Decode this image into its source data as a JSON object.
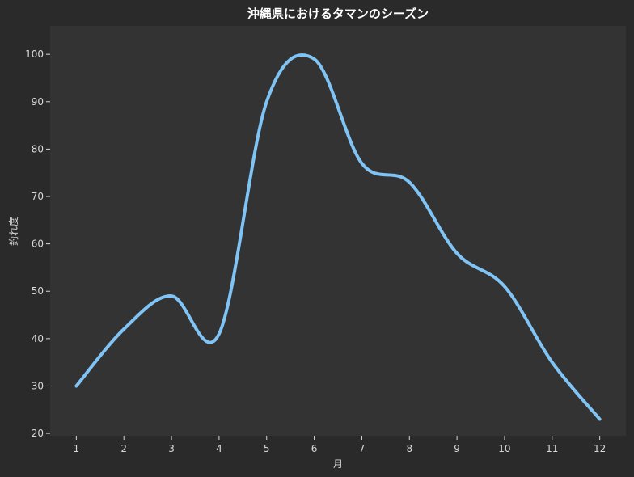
{
  "chart_data": {
    "type": "line",
    "title": "沖縄県におけるタマンのシーズン",
    "xlabel": "月",
    "ylabel": "釣れ度",
    "x": [
      1,
      2,
      3,
      4,
      5,
      6,
      7,
      8,
      9,
      10,
      11,
      12
    ],
    "x_tick_labels": [
      "1",
      "2",
      "3",
      "4",
      "5",
      "6",
      "7",
      "8",
      "9",
      "10",
      "11",
      "12"
    ],
    "y_ticks": [
      20,
      30,
      40,
      50,
      60,
      70,
      80,
      90,
      100
    ],
    "y_tick_labels": [
      "20",
      "30",
      "40",
      "50",
      "60",
      "70",
      "80",
      "90",
      "100"
    ],
    "xlim": [
      0.45,
      12.55
    ],
    "ylim": [
      19.5,
      106
    ],
    "series": [
      {
        "values": [
          30,
          42,
          49,
          41,
          90,
          99,
          77,
          73,
          58,
          51,
          35,
          23
        ],
        "color": "#7fc4f5"
      }
    ],
    "grid": false,
    "plot_background": "#333333",
    "figure_background": "#2a2a2a"
  }
}
